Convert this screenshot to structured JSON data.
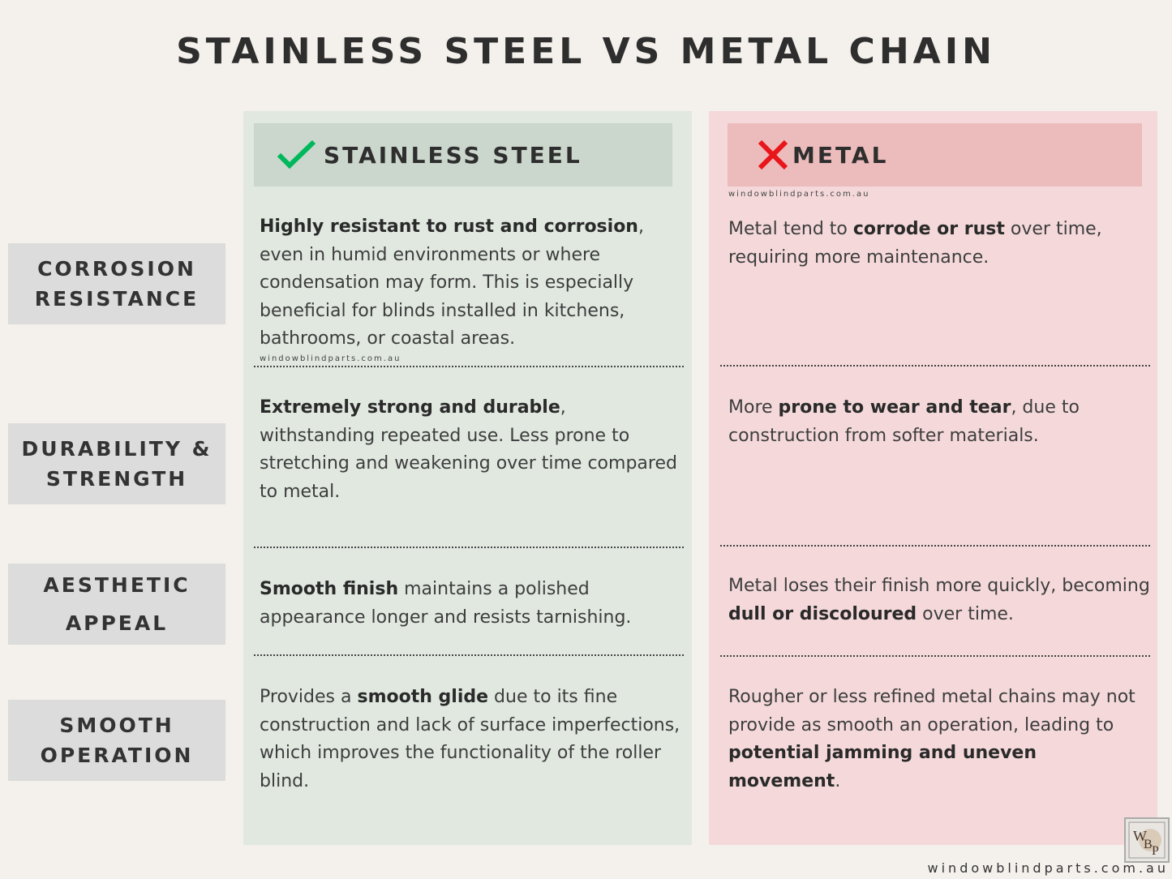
{
  "title": "STAINLESS STEEL VS METAL CHAIN",
  "steel_header": "STAINLESS STEEL",
  "metal_header": "METAL",
  "colors": {
    "check": "#00b85c",
    "cross": "#e8151b",
    "steel_bg": "#e0e8e0",
    "metal_bg": "#f5d9da"
  },
  "icons": {
    "steel": "check-icon",
    "metal": "cross-icon"
  },
  "watermark": "windowblindparts.com.au",
  "footer": "windowblindparts.com.au",
  "logo": "WBP",
  "rows": [
    {
      "label": [
        "CORROSION",
        "RESISTANCE"
      ],
      "steel": [
        {
          "t": "Highly resistant to rust and corrosion",
          "b": true
        },
        {
          "t": ", even in humid environments or where condensation may form. This is especially beneficial for blinds installed in kitchens, bathrooms, or coastal areas.",
          "b": false
        }
      ],
      "metal": [
        {
          "t": "Metal tend to ",
          "b": false
        },
        {
          "t": "corrode or rust",
          "b": true
        },
        {
          "t": " over time, requiring more maintenance.",
          "b": false
        }
      ]
    },
    {
      "label": [
        "DURABILITY &",
        "STRENGTH"
      ],
      "steel": [
        {
          "t": "Extremely strong and durable",
          "b": true
        },
        {
          "t": ", withstanding repeated use. Less prone to stretching and weakening over time compared to metal.",
          "b": false
        }
      ],
      "metal": [
        {
          "t": "More ",
          "b": false
        },
        {
          "t": "prone to wear and tear",
          "b": true
        },
        {
          "t": ", due to construction from softer materials.",
          "b": false
        }
      ]
    },
    {
      "label": [
        "AESTHETIC",
        "APPEAL"
      ],
      "steel": [
        {
          "t": "Smooth finish",
          "b": true
        },
        {
          "t": " maintains a polished appearance longer and resists tarnishing.",
          "b": false
        }
      ],
      "metal": [
        {
          "t": "Metal loses their finish more quickly, becoming ",
          "b": false
        },
        {
          "t": "dull or discoloured",
          "b": true
        },
        {
          "t": " over time.",
          "b": false
        }
      ]
    },
    {
      "label": [
        "SMOOTH",
        "OPERATION"
      ],
      "steel": [
        {
          "t": "Provides a ",
          "b": false
        },
        {
          "t": "smooth glide",
          "b": true
        },
        {
          "t": " due to its fine construction and lack of surface imperfections, which improves the functionality of the roller blind.",
          "b": false
        }
      ],
      "metal": [
        {
          "t": "Rougher or less refined metal chains may not provide as smooth an operation, leading to ",
          "b": false
        },
        {
          "t": "potential jamming and uneven movement",
          "b": true
        },
        {
          "t": ".",
          "b": false
        }
      ]
    }
  ]
}
